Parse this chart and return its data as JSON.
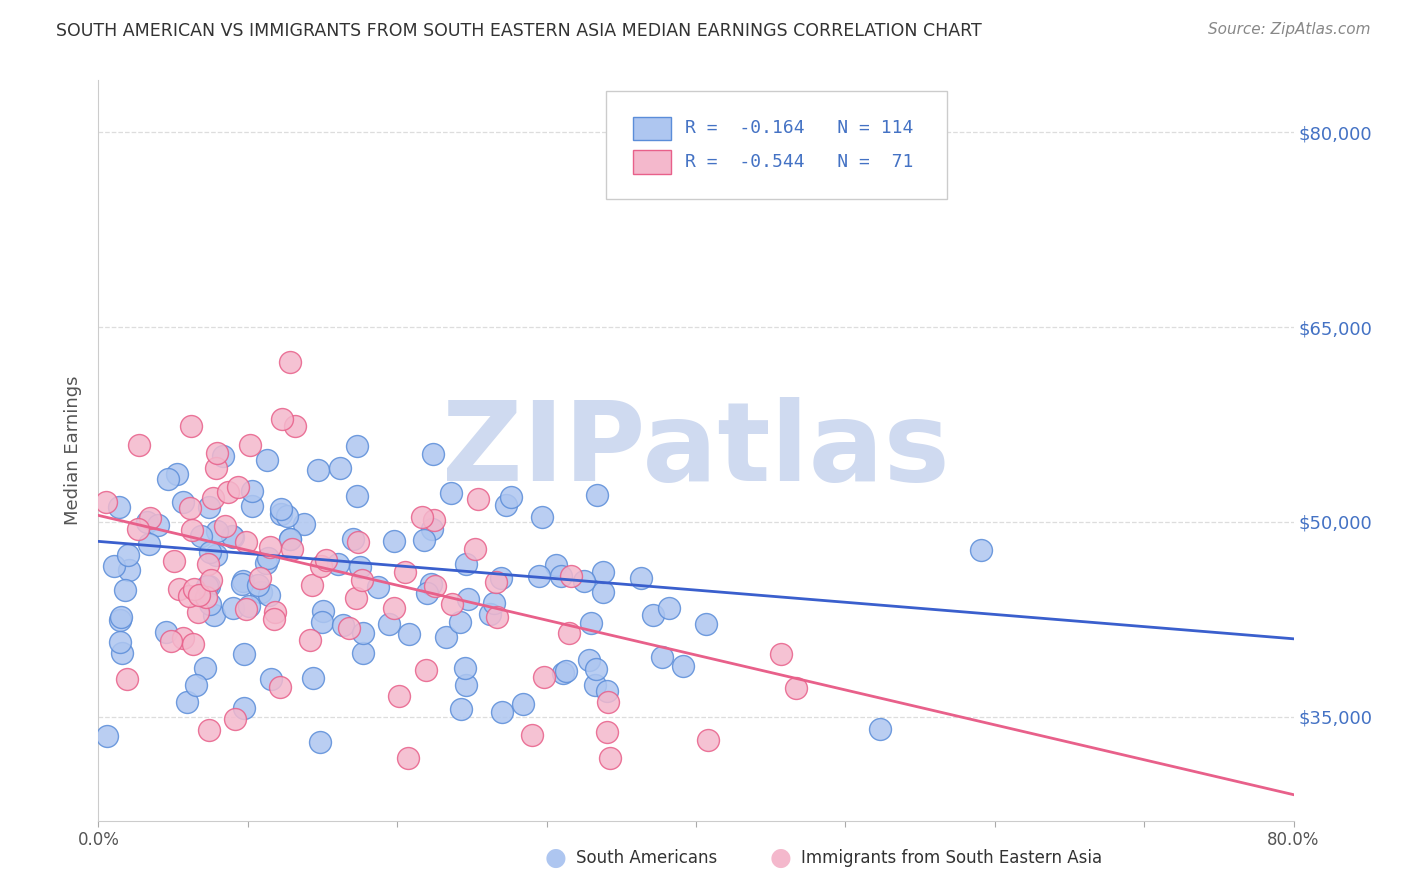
{
  "title": "SOUTH AMERICAN VS IMMIGRANTS FROM SOUTH EASTERN ASIA MEDIAN EARNINGS CORRELATION CHART",
  "source": "Source: ZipAtlas.com",
  "ylabel": "Median Earnings",
  "yticks": [
    35000,
    50000,
    65000,
    80000
  ],
  "ytick_labels": [
    "$35,000",
    "$50,000",
    "$65,000",
    "$80,000"
  ],
  "ylim": [
    27000,
    84000
  ],
  "xlim": [
    0.0,
    0.8
  ],
  "series1": {
    "label": "South Americans",
    "color": "#aec6f0",
    "edge_color": "#5b8dd9",
    "R": -0.164,
    "N": 114,
    "trend_color": "#3a5fcd"
  },
  "series2": {
    "label": "Immigrants from South Eastern Asia",
    "color": "#f4b8cc",
    "edge_color": "#e8608a",
    "R": -0.544,
    "N": 71,
    "trend_color": "#e8608a"
  },
  "watermark": "ZIPatlas",
  "watermark_color": "#cfdaf0",
  "background_color": "#ffffff",
  "grid_color": "#dddddd",
  "title_color": "#333333",
  "axis_label_color": "#555555",
  "ytick_color": "#4472c4",
  "xtick_color": "#555555",
  "legend_R1": "-0.164",
  "legend_N1": "114",
  "legend_R2": "-0.544",
  "legend_N2": "71"
}
